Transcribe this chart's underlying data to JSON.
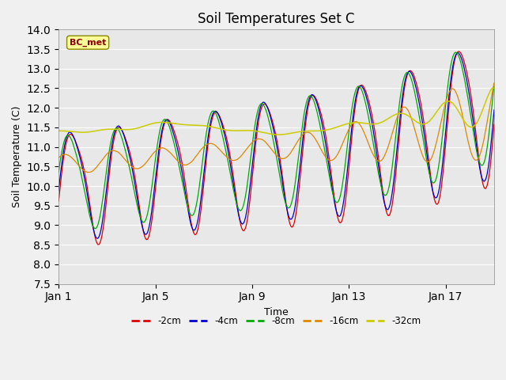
{
  "title": "Soil Temperatures Set C",
  "xlabel": "Time",
  "ylabel": "Soil Temperature (C)",
  "ylim": [
    7.5,
    14.0
  ],
  "yticks": [
    7.5,
    8.0,
    8.5,
    9.0,
    9.5,
    10.0,
    10.5,
    11.0,
    11.5,
    12.0,
    12.5,
    13.0,
    13.5,
    14.0
  ],
  "colors": {
    "-2cm": "#dd0000",
    "-4cm": "#0000cc",
    "-8cm": "#00aa00",
    "-16cm": "#dd8800",
    "-32cm": "#cccc00"
  },
  "label_box": "BC_met",
  "n_points": 432,
  "days": 18,
  "plot_bg_color": "#e8e8e8",
  "fig_bg_color": "#f0f0f0",
  "xtick_labels": [
    "Jan 1",
    "Jan 5",
    "Jan 9",
    "Jan 13",
    "Jan 17"
  ],
  "xtick_positions": [
    0,
    4,
    8,
    12,
    16
  ],
  "figsize": [
    6.4,
    4.8
  ],
  "dpi": 100
}
